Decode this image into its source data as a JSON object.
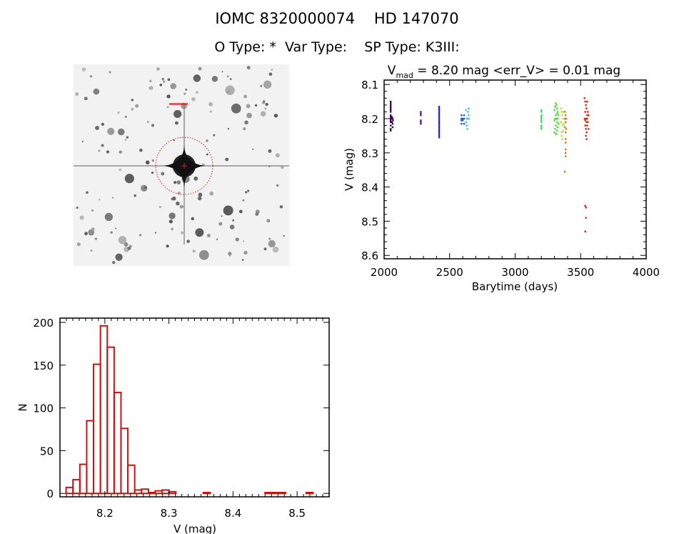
{
  "header": {
    "title": "IOMC 8320000074    HD 147070",
    "subtitle": "O Type: *  Var Type:    SP Type: K3III:"
  },
  "image": {
    "description_label": "star field image",
    "marker_color": "#cc2020"
  },
  "chart_data": [
    {
      "type": "scatter",
      "title_prefix": "V",
      "title_sub": "mad",
      "title_rest": " = 8.20 mag <err_V> = 0.01 mag",
      "xlabel": "Barytime (days)",
      "ylabel": "V (mag)",
      "xlim": [
        2000,
        4000
      ],
      "ylim": [
        8.61,
        8.087
      ],
      "y_reversed": true,
      "xticks": [
        2000,
        2500,
        3000,
        3500,
        4000
      ],
      "yticks": [
        8.1,
        8.2,
        8.3,
        8.4,
        8.5,
        8.6
      ],
      "xtick_labels": [
        "2000",
        "2500",
        "3000",
        "3500",
        "4000"
      ],
      "ytick_labels": [
        "8.1",
        "8.2",
        "8.3",
        "8.4",
        "8.5",
        "8.6"
      ],
      "grid": false,
      "groups": [
        {
          "color": "#3a0050",
          "x": [
            2050,
            2050,
            2050,
            2050,
            2050,
            2050,
            2050,
            2050,
            2050,
            2050,
            2050,
            2050,
            2050,
            2050,
            2050,
            2060,
            2060,
            2060,
            2065,
            2065,
            2065,
            2068
          ],
          "y": [
            8.15,
            8.155,
            8.16,
            8.165,
            8.17,
            8.175,
            8.18,
            8.19,
            8.195,
            8.2,
            8.205,
            8.21,
            8.22,
            8.23,
            8.235,
            8.195,
            8.2,
            8.21,
            8.2,
            8.215,
            8.225,
            8.205
          ]
        },
        {
          "color": "#5a1a9a",
          "x": [
            2280,
            2280,
            2280,
            2280,
            2280,
            2280
          ],
          "y": [
            8.18,
            8.185,
            8.19,
            8.205,
            8.21,
            8.215
          ]
        },
        {
          "color": "#2323c0",
          "x": [
            2420,
            2420,
            2420,
            2420,
            2420,
            2420,
            2420,
            2420,
            2420,
            2420,
            2420,
            2420,
            2420,
            2420,
            2420,
            2420,
            2420,
            2420,
            2420
          ],
          "y": [
            8.165,
            8.17,
            8.175,
            8.18,
            8.185,
            8.19,
            8.195,
            8.2,
            8.205,
            8.21,
            8.215,
            8.22,
            8.225,
            8.23,
            8.235,
            8.24,
            8.245,
            8.25,
            8.255
          ]
        },
        {
          "color": "#1a55d5",
          "x": [
            2590,
            2590,
            2590,
            2590,
            2600,
            2600,
            2610,
            2610,
            2610
          ],
          "y": [
            8.19,
            8.2,
            8.205,
            8.215,
            8.2,
            8.205,
            8.19,
            8.2,
            8.215
          ]
        },
        {
          "color": "#30c8e0",
          "x": [
            2625,
            2625,
            2630,
            2630,
            2635,
            2640,
            2640,
            2645,
            2645,
            2648
          ],
          "y": [
            8.175,
            8.21,
            8.2,
            8.22,
            8.23,
            8.18,
            8.2,
            8.17,
            8.19,
            8.2
          ]
        },
        {
          "color": "#30e060",
          "x": [
            3200,
            3200,
            3200,
            3200,
            3200,
            3200,
            3200,
            3200,
            3200,
            3200
          ],
          "y": [
            8.175,
            8.18,
            8.19,
            8.195,
            8.2,
            8.205,
            8.21,
            8.22,
            8.225,
            8.23
          ]
        },
        {
          "color": "#40e030",
          "x": [
            3300,
            3300,
            3305,
            3305,
            3310,
            3310,
            3310,
            3315,
            3315,
            3315,
            3320,
            3320,
            3320,
            3325,
            3325,
            3325,
            3330,
            3330,
            3305,
            3310,
            3320,
            3300
          ],
          "y": [
            8.175,
            8.24,
            8.165,
            8.2,
            8.155,
            8.19,
            8.22,
            8.16,
            8.2,
            8.245,
            8.17,
            8.21,
            8.235,
            8.18,
            8.2,
            8.225,
            8.19,
            8.215,
            8.23,
            8.245,
            8.185,
            8.205
          ]
        },
        {
          "color": "#b8e020",
          "x": [
            3350,
            3350,
            3355,
            3355,
            3360,
            3360,
            3360,
            3365,
            3365,
            3370,
            3370,
            3355
          ],
          "y": [
            8.17,
            8.21,
            8.18,
            8.24,
            8.19,
            8.22,
            8.26,
            8.2,
            8.235,
            8.18,
            8.215,
            8.25
          ]
        },
        {
          "color": "#e07020",
          "x": [
            3380,
            3380,
            3380,
            3385,
            3385,
            3385,
            3390,
            3390,
            3385,
            3385,
            3385,
            3385,
            3385,
            3380
          ],
          "y": [
            8.18,
            8.2,
            8.225,
            8.19,
            8.21,
            8.24,
            8.2,
            8.23,
            8.26,
            8.27,
            8.29,
            8.3,
            8.31,
            8.355
          ]
        },
        {
          "color": "#e02010",
          "x": [
            3530,
            3530,
            3535,
            3535,
            3535,
            3540,
            3540,
            3540,
            3545,
            3545,
            3545,
            3550,
            3550,
            3550,
            3555,
            3555,
            3560,
            3560,
            3540,
            3545,
            3535,
            3550,
            3535,
            3540,
            3540,
            3535
          ],
          "y": [
            8.14,
            8.2,
            8.15,
            8.18,
            8.22,
            8.16,
            8.2,
            8.23,
            8.17,
            8.21,
            8.24,
            8.15,
            8.19,
            8.22,
            8.18,
            8.21,
            8.19,
            8.23,
            8.25,
            8.26,
            8.205,
            8.2,
            8.455,
            8.46,
            8.49,
            8.53
          ]
        }
      ]
    },
    {
      "type": "bar",
      "subtype": "histogram",
      "xlabel": "V (mag)",
      "ylabel": "N",
      "xlim": [
        8.13,
        8.55
      ],
      "ylim": [
        -4,
        205
      ],
      "xticks": [
        8.2,
        8.3,
        8.4,
        8.5
      ],
      "yticks": [
        0,
        50,
        100,
        150,
        200
      ],
      "xtick_labels": [
        "8.2",
        "8.3",
        "8.4",
        "8.5"
      ],
      "ytick_labels": [
        "0",
        "50",
        "100",
        "150",
        "200"
      ],
      "bin_start": 8.1396,
      "bin_width": 0.0107,
      "counts": [
        7,
        16,
        34,
        85,
        151,
        196,
        171,
        118,
        76,
        33,
        4,
        5,
        1,
        3,
        4,
        2,
        0,
        0,
        0,
        0,
        1,
        0,
        0,
        0,
        0,
        0,
        0,
        0,
        0,
        1,
        1,
        1,
        0,
        0,
        0,
        1,
        0
      ],
      "bar_color": "#cc1111",
      "grid": false
    }
  ]
}
